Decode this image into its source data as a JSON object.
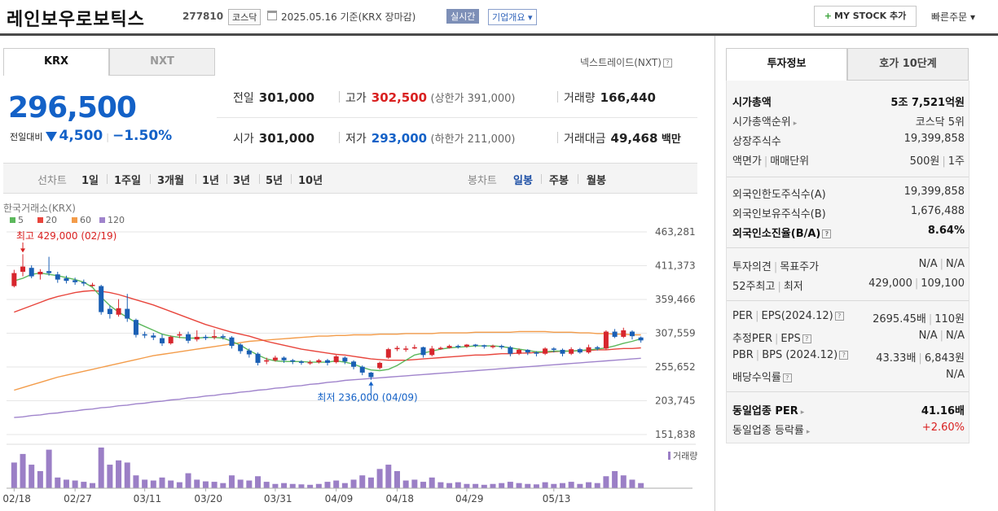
{
  "header": {
    "name": "레인보우로보틱스",
    "code": "277810",
    "market": "코스닥",
    "date": "2025.05.16  기준(KRX 장마감)",
    "live": "실시간",
    "company_info": "기업개요",
    "mystock": "MY STOCK 추가",
    "quick_order": "빠른주문"
  },
  "tabs": {
    "krx": "KRX",
    "nxt": "NXT"
  },
  "nextrade": "넥스트레이드(NXT)",
  "quote": {
    "price": "296,500",
    "change_label": "전일대비",
    "change": "4,500",
    "change_pct": "−1.50%",
    "prev_label": "전일",
    "prev": "301,000",
    "high_label": "고가",
    "high": "302,500",
    "upper_limit": "(상한가 391,000)",
    "volume_label": "거래량",
    "volume": "166,440",
    "open_label": "시가",
    "open": "301,000",
    "low_label": "저가",
    "low": "293,000",
    "lower_limit": "(하한가 211,000)",
    "amount_label": "거래대금",
    "amount": "49,468",
    "amount_unit": "백만"
  },
  "periods": {
    "line_chart": "선차트",
    "items": [
      "1일",
      "1주일",
      "3개월",
      "1년",
      "3년",
      "5년",
      "10년"
    ],
    "candle_chart": "봉차트",
    "candle_items": [
      "일봉",
      "주봉",
      "월봉"
    ]
  },
  "chart_data": {
    "type": "candlestick",
    "source_label": "한국거래소(KRX)",
    "legend": [
      "5",
      "20",
      "60",
      "120"
    ],
    "colors": {
      "ma5": "#5cb85c",
      "ma20": "#e8453c",
      "ma60": "#f39c4a",
      "ma120": "#a084cc",
      "up": "#d7262d",
      "down": "#1a5fb4"
    },
    "y_ticks": [
      "463,281",
      "411,373",
      "359,466",
      "307,559",
      "255,652",
      "203,745",
      "151,838"
    ],
    "ylim": [
      151838,
      463281
    ],
    "x_ticks": [
      "02/18",
      "02/27",
      "03/11",
      "03/20",
      "03/31",
      "04/09",
      "04/18",
      "04/29",
      "05/13"
    ],
    "high_annotation": "최고 429,000 (02/19)",
    "low_annotation": "최저 236,000 (04/09)",
    "volume_label": "거래량",
    "candles": [
      [
        380000,
        400000,
        378000,
        405000
      ],
      [
        402000,
        410000,
        395000,
        429000
      ],
      [
        408000,
        395000,
        392000,
        412000
      ],
      [
        398000,
        402000,
        390000,
        406000
      ],
      [
        403000,
        400000,
        396000,
        425000
      ],
      [
        398000,
        390000,
        385000,
        402000
      ],
      [
        392000,
        388000,
        384000,
        396000
      ],
      [
        389000,
        386000,
        382000,
        393000
      ],
      [
        386000,
        384000,
        380000,
        390000
      ],
      [
        382000,
        382000,
        379000,
        385000
      ],
      [
        380000,
        340000,
        336000,
        382000
      ],
      [
        345000,
        337000,
        330000,
        350000
      ],
      [
        336000,
        346000,
        333000,
        360000
      ],
      [
        345000,
        330000,
        325000,
        368000
      ],
      [
        328000,
        305000,
        301000,
        330000
      ],
      [
        306000,
        304000,
        300000,
        310000
      ],
      [
        304000,
        301000,
        297000,
        308000
      ],
      [
        300000,
        292000,
        288000,
        306000
      ],
      [
        292000,
        302000,
        290000,
        304000
      ],
      [
        304000,
        306000,
        300000,
        310000
      ],
      [
        306000,
        296000,
        292000,
        310000
      ],
      [
        298000,
        302000,
        295000,
        312000
      ],
      [
        302000,
        300000,
        297000,
        305000
      ],
      [
        301000,
        303000,
        298000,
        313000
      ],
      [
        303000,
        301000,
        298000,
        306000
      ],
      [
        301000,
        288000,
        284000,
        303000
      ],
      [
        290000,
        280000,
        276000,
        292000
      ],
      [
        281000,
        275000,
        270000,
        284000
      ],
      [
        276000,
        262000,
        258000,
        278000
      ],
      [
        264000,
        266000,
        260000,
        270000
      ],
      [
        266000,
        270000,
        264000,
        273000
      ],
      [
        270000,
        266000,
        262000,
        272000
      ],
      [
        266000,
        264000,
        260000,
        268000
      ],
      [
        264000,
        262000,
        259000,
        266000
      ],
      [
        262000,
        263000,
        259000,
        266000
      ],
      [
        263000,
        266000,
        261000,
        268000
      ],
      [
        266000,
        262000,
        258000,
        268000
      ],
      [
        263000,
        272000,
        261000,
        274000
      ],
      [
        270000,
        264000,
        260000,
        272000
      ],
      [
        264000,
        256000,
        252000,
        266000
      ],
      [
        256000,
        247000,
        243000,
        258000
      ],
      [
        247000,
        240000,
        236000,
        248000
      ],
      [
        254000,
        262000,
        252000,
        264000
      ],
      [
        270000,
        283000,
        268000,
        285000
      ],
      [
        283000,
        285000,
        280000,
        288000
      ],
      [
        284000,
        284000,
        279000,
        288000
      ],
      [
        285000,
        286000,
        283000,
        290000
      ],
      [
        286000,
        274000,
        270000,
        287000
      ],
      [
        274000,
        284000,
        272000,
        288000
      ],
      [
        284000,
        285000,
        282000,
        287000
      ],
      [
        285000,
        288000,
        284000,
        290000
      ],
      [
        288000,
        287000,
        284000,
        290000
      ],
      [
        287000,
        290000,
        285000,
        291000
      ],
      [
        290000,
        289000,
        286000,
        291000
      ],
      [
        289000,
        287000,
        284000,
        290000
      ],
      [
        287000,
        288000,
        284000,
        290000
      ],
      [
        288000,
        286000,
        283000,
        290000
      ],
      [
        286000,
        276000,
        272000,
        288000
      ],
      [
        276000,
        282000,
        274000,
        284000
      ],
      [
        282000,
        278000,
        274000,
        283000
      ],
      [
        278000,
        276000,
        272000,
        280000
      ],
      [
        276000,
        284000,
        274000,
        286000
      ],
      [
        284000,
        282000,
        278000,
        286000
      ],
      [
        282000,
        276000,
        272000,
        284000
      ],
      [
        276000,
        283000,
        274000,
        286000
      ],
      [
        283000,
        278000,
        276000,
        285000
      ],
      [
        278000,
        286000,
        276000,
        290000
      ],
      [
        286000,
        284000,
        281000,
        288000
      ],
      [
        284000,
        310000,
        282000,
        312000
      ],
      [
        310000,
        302000,
        300000,
        314000
      ],
      [
        302000,
        312000,
        300000,
        316000
      ],
      [
        310000,
        303000,
        298000,
        312000
      ],
      [
        301000,
        296500,
        293000,
        302500
      ]
    ],
    "ma5": [
      388000,
      392000,
      398000,
      400000,
      398000,
      396000,
      393000,
      390000,
      386000,
      378000,
      363000,
      350000,
      340000,
      332000,
      324000,
      318000,
      312000,
      306000,
      303000,
      301000,
      300000,
      300000,
      301000,
      301000,
      300000,
      295000,
      289000,
      281000,
      274000,
      268000,
      265000,
      264000,
      264000,
      264000,
      263000,
      263000,
      263000,
      265000,
      263000,
      260000,
      255000,
      251000,
      250000,
      252000,
      258000,
      266000,
      274000,
      277000,
      280000,
      283000,
      285000,
      286000,
      287000,
      288000,
      288000,
      288000,
      287000,
      285000,
      283000,
      281000,
      279000,
      279000,
      280000,
      280000,
      280000,
      281000,
      282000,
      283000,
      285000,
      288000,
      292000,
      295000,
      299000
    ],
    "ma20": [
      340000,
      345000,
      350000,
      355000,
      360000,
      364000,
      367000,
      370000,
      372000,
      373000,
      372000,
      370000,
      367000,
      363000,
      359000,
      355000,
      351000,
      346000,
      341000,
      336000,
      331000,
      326000,
      321000,
      317000,
      313000,
      309000,
      306000,
      303000,
      299000,
      295000,
      292000,
      289000,
      286000,
      283000,
      281000,
      279000,
      277000,
      275000,
      274000,
      272000,
      270000,
      268000,
      267000,
      266000,
      266000,
      266000,
      267000,
      268000,
      269000,
      270000,
      271000,
      272000,
      273000,
      274000,
      274000,
      275000,
      276000,
      276000,
      277000,
      277000,
      278000,
      278000,
      279000,
      280000,
      280000,
      281000,
      281000,
      282000,
      282000,
      283000,
      284000,
      284000,
      285000
    ],
    "ma60": [
      220000,
      224000,
      228000,
      232000,
      236000,
      240000,
      243000,
      246000,
      249000,
      252000,
      255000,
      258000,
      261000,
      264000,
      267000,
      270000,
      273000,
      275000,
      277000,
      279000,
      281000,
      283000,
      285000,
      287000,
      289000,
      291000,
      293000,
      295000,
      296000,
      297000,
      298000,
      299000,
      300000,
      301000,
      302000,
      303000,
      303000,
      304000,
      304000,
      305000,
      305000,
      305000,
      306000,
      306000,
      306000,
      307000,
      307000,
      307000,
      307000,
      308000,
      308000,
      308000,
      308000,
      309000,
      309000,
      309000,
      309000,
      309000,
      310000,
      310000,
      310000,
      310000,
      309000,
      309000,
      309000,
      308000,
      308000,
      307000,
      307000,
      306000,
      306000,
      305000,
      305000
    ],
    "ma120": [
      178000,
      179000,
      181000,
      182000,
      184000,
      185000,
      187000,
      188000,
      190000,
      191000,
      193000,
      194000,
      196000,
      197000,
      199000,
      200000,
      202000,
      203000,
      205000,
      206000,
      208000,
      209000,
      211000,
      212000,
      214000,
      215000,
      217000,
      218000,
      220000,
      221000,
      223000,
      224000,
      226000,
      227000,
      229000,
      230000,
      232000,
      233000,
      235000,
      236000,
      237000,
      238000,
      239000,
      240000,
      241000,
      242000,
      243000,
      244000,
      245000,
      246000,
      247000,
      248000,
      249000,
      250000,
      251000,
      252000,
      253000,
      254000,
      255000,
      256000,
      257000,
      258000,
      259000,
      260000,
      261000,
      262000,
      263000,
      264000,
      265000,
      266000,
      267000,
      268000,
      269000
    ],
    "volume": [
      60,
      80,
      55,
      40,
      90,
      25,
      20,
      18,
      15,
      12,
      95,
      55,
      65,
      60,
      30,
      20,
      18,
      25,
      18,
      14,
      35,
      20,
      16,
      15,
      12,
      30,
      20,
      18,
      28,
      15,
      10,
      12,
      10,
      9,
      8,
      10,
      15,
      18,
      12,
      20,
      30,
      25,
      45,
      55,
      40,
      18,
      20,
      15,
      25,
      14,
      12,
      14,
      10,
      10,
      8,
      10,
      12,
      15,
      12,
      10,
      9,
      14,
      10,
      12,
      15,
      10,
      14,
      12,
      28,
      40,
      30,
      20,
      12
    ]
  },
  "invest": {
    "tab_info": "투자정보",
    "tab_hoga": "호가 10단계",
    "rows1": [
      {
        "k": "시가총액",
        "v": "5조 7,521억원"
      },
      {
        "k": "시가총액순위",
        "v": "코스닥 5위"
      },
      {
        "k": "상장주식수",
        "v": "19,399,858"
      },
      {
        "k": "액면가",
        "k2": "매매단위",
        "v": "500원",
        "v2": "1주"
      }
    ],
    "rows2": [
      {
        "k": "외국인한도주식수(A)",
        "v": "19,399,858"
      },
      {
        "k": "외국인보유주식수(B)",
        "v": "1,676,488"
      },
      {
        "k": "외국인소진율(B/A)",
        "v": "8.64%"
      }
    ],
    "rows3": [
      {
        "k": "투자의견",
        "k2": "목표주가",
        "v": "N/A",
        "v2": "N/A"
      },
      {
        "k": "52주최고",
        "k2": "최저",
        "v": "429,000",
        "v2": "109,100"
      }
    ],
    "rows4": [
      {
        "k": "PER",
        "k2": "EPS(2024.12)",
        "v": "2695.45배",
        "v2": "110원"
      },
      {
        "k": "추정PER",
        "k2": "EPS",
        "v": "N/A",
        "v2": "N/A"
      },
      {
        "k": "PBR",
        "k2": "BPS (2024.12)",
        "v": "43.33배",
        "v2": "6,843원"
      },
      {
        "k": "배당수익률",
        "v": "N/A"
      }
    ],
    "rows5": [
      {
        "k": "동일업종 PER",
        "v": "41.16배"
      },
      {
        "k": "동일업종 등락률",
        "v": "+2.60%"
      }
    ]
  }
}
